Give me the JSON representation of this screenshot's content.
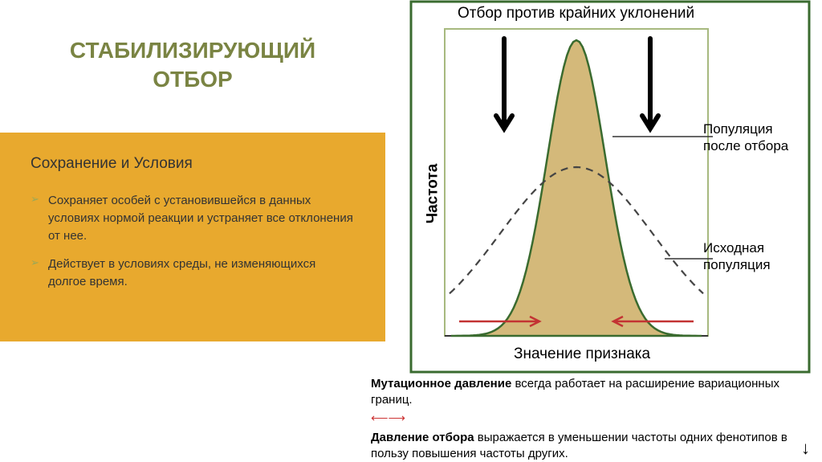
{
  "title": "СТАБИЛИЗИРУЮЩИЙ ОТБОР",
  "title_color": "#7a8443",
  "subtitle": "Сохранение и Условия",
  "subtitle_color": "#333333",
  "content_bg": "#e8a92e",
  "bullet_color": "#9aa857",
  "bullets": [
    "Сохраняет особей с установившейся в данных условиях нормой реакции и устраняет все отклонения от нее.",
    "Действует в условиях среды, не изменяющихся долгое время."
  ],
  "bullet_text_color": "#333333",
  "diagram": {
    "border_color": "#3a6b2f",
    "frame_color": "#a7b97f",
    "top_label": "Отбор против крайних уклонений",
    "y_axis_label": "Частота",
    "x_axis_label": "Значение признака",
    "label_pop_after": "Популяция после отбора",
    "label_initial": "Исходная популяция",
    "curve_fill": "#d4b97a",
    "curve_stroke": "#3a6b2f",
    "dashed_stroke": "#444444",
    "arrow_color": "#000000",
    "red_arrow_color": "#c33333"
  },
  "footer": {
    "mutation_label": "Мутационное давление",
    "mutation_text": " всегда работает на расширение вариационных границ.",
    "selection_label": "Давление отбора",
    "selection_text": " выражается в уменьшении частоты одних фенотипов в пользу повышения частоты других.",
    "text_color": "#000000"
  }
}
